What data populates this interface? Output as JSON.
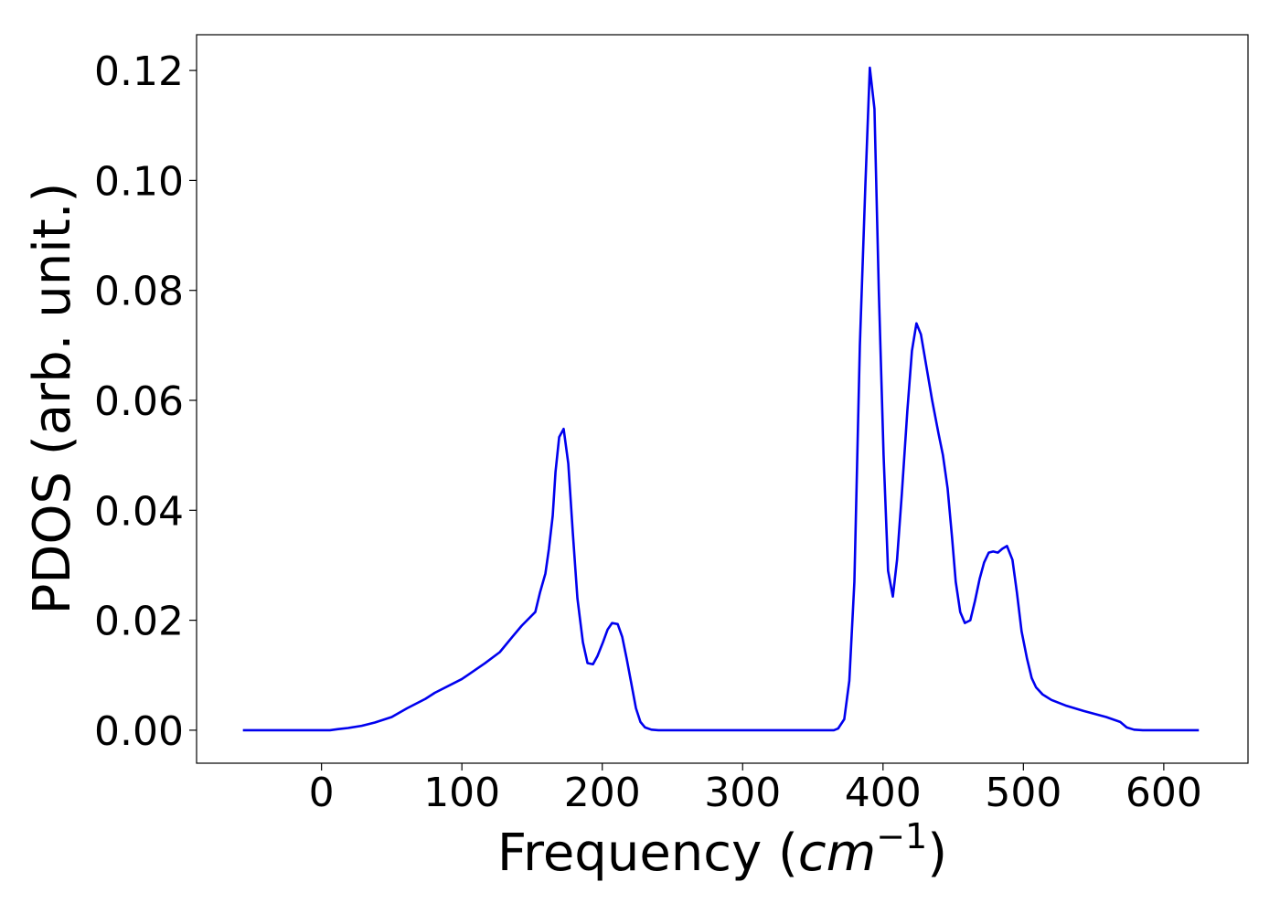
{
  "chart_data": {
    "type": "line",
    "x_label_parts": [
      "Frequency (",
      "cm",
      "−1",
      ")"
    ],
    "y_label": "PDOS (arb. unit.)",
    "xlim": [
      -89,
      660
    ],
    "ylim": [
      -0.006,
      0.1265
    ],
    "xticks": [
      0,
      100,
      200,
      300,
      400,
      500,
      600
    ],
    "yticks": [
      {
        "value": 0,
        "label": "0.00"
      },
      {
        "value": 0.02,
        "label": "0.02"
      },
      {
        "value": 0.04,
        "label": "0.04"
      },
      {
        "value": 0.06,
        "label": "0.06"
      },
      {
        "value": 0.08,
        "label": "0.08"
      },
      {
        "value": 0.1,
        "label": "0.10"
      },
      {
        "value": 0.12,
        "label": "0.12"
      }
    ],
    "series": [
      {
        "color": "#0000ee",
        "x": [
          -56,
          0,
          6,
          12,
          19,
          28.6,
          38,
          50,
          61,
          74,
          80.7,
          100,
          116.5,
          127,
          136,
          142.6,
          152.3,
          155.6,
          159.5,
          162,
          164.7,
          166.7,
          169.3,
          172.5,
          175.8,
          179,
          182.3,
          186.2,
          189.5,
          193.4,
          196.6,
          200.5,
          203.8,
          207,
          211,
          214.2,
          217.4,
          220.7,
          224,
          227.2,
          230.5,
          235,
          240,
          365,
          368,
          372.4,
          376,
          379.6,
          383.5,
          387.4,
          390.6,
          393.9,
          397,
          400.4,
          403.6,
          407,
          410,
          413.4,
          417.3,
          420.6,
          423.8,
          427,
          431,
          435,
          439.5,
          442.7,
          446,
          449.2,
          451.8,
          455,
          458.3,
          462.2,
          465.5,
          468.8,
          472,
          475.3,
          478.5,
          481.8,
          485,
          488.3,
          492.2,
          495.4,
          498.7,
          502.6,
          505.9,
          509,
          513.7,
          520,
          530,
          543,
          559,
          569,
          573.6,
          578.8,
          585,
          625
        ],
        "values": [
          0,
          0,
          0,
          0.0002,
          0.0004,
          0.0008,
          0.0014,
          0.0024,
          0.004,
          0.0057,
          0.0068,
          0.0093,
          0.0122,
          0.0142,
          0.017,
          0.019,
          0.0215,
          0.025,
          0.0285,
          0.033,
          0.039,
          0.047,
          0.0533,
          0.0548,
          0.0485,
          0.036,
          0.024,
          0.016,
          0.0122,
          0.012,
          0.0135,
          0.016,
          0.0183,
          0.0195,
          0.0193,
          0.017,
          0.013,
          0.0085,
          0.004,
          0.0015,
          0.0005,
          0.0001,
          0,
          0,
          0.0003,
          0.002,
          0.009,
          0.027,
          0.07,
          0.099,
          0.1205,
          0.113,
          0.08,
          0.05,
          0.029,
          0.0243,
          0.031,
          0.043,
          0.058,
          0.069,
          0.074,
          0.072,
          0.066,
          0.06,
          0.054,
          0.05,
          0.044,
          0.035,
          0.027,
          0.0215,
          0.0195,
          0.02,
          0.0235,
          0.0275,
          0.0305,
          0.0323,
          0.0325,
          0.0323,
          0.033,
          0.0335,
          0.031,
          0.025,
          0.018,
          0.013,
          0.0095,
          0.0078,
          0.0065,
          0.0055,
          0.0045,
          0.0035,
          0.0024,
          0.0015,
          0.0005,
          0.0001,
          0,
          0
        ]
      }
    ]
  }
}
